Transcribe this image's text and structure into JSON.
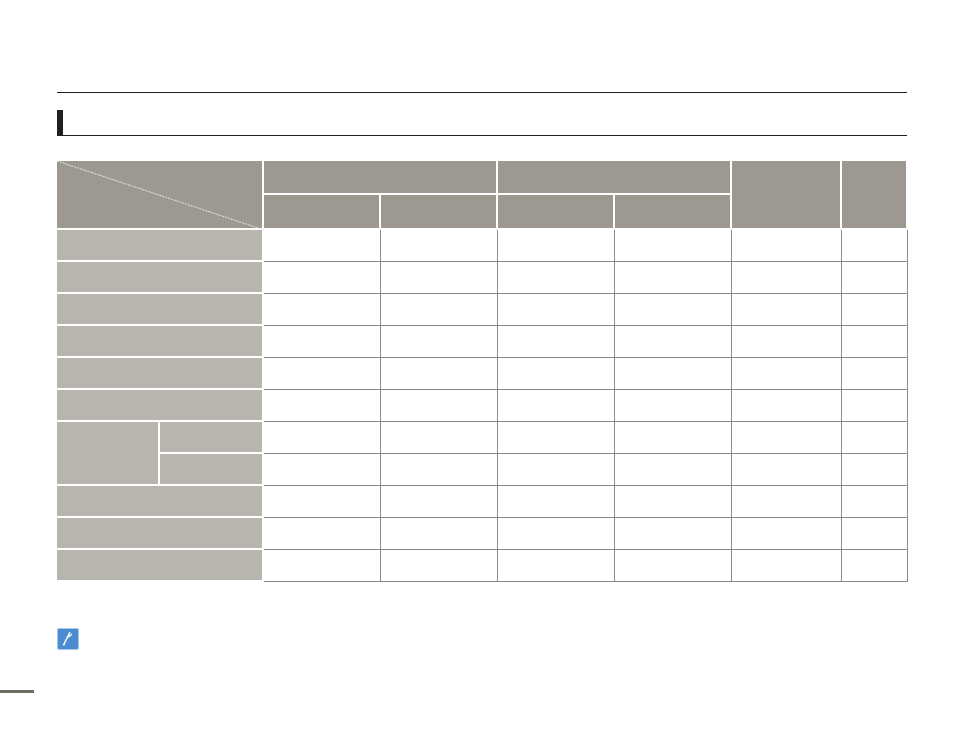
{
  "colors": {
    "header_bg": "#9d9991",
    "row_header_bg": "#b8b5ae",
    "body_bg": "#ffffff",
    "grid_line": "#8a8a8a",
    "rule": "#231f20",
    "note_icon": "#4a8ccf",
    "footer_bar": "#6e6e5e"
  },
  "icons": {
    "note": "note-pencil-icon"
  }
}
